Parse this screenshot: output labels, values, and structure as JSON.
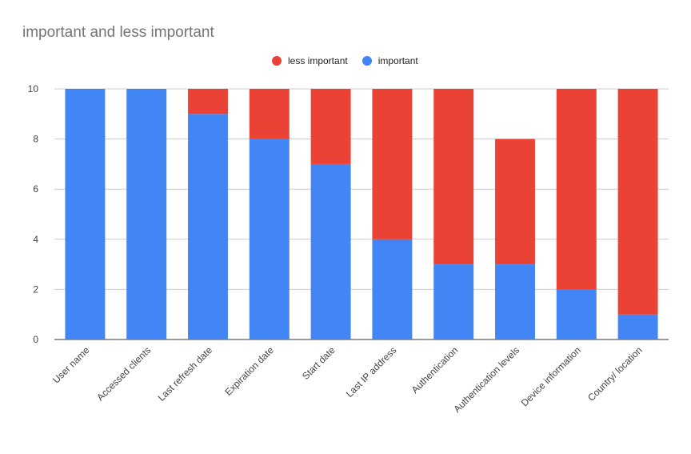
{
  "chart_data": {
    "type": "bar",
    "stacked": true,
    "title": "important and less important",
    "xlabel": "",
    "ylabel": "",
    "ylim": [
      0,
      10
    ],
    "yticks": [
      0,
      2,
      4,
      6,
      8,
      10
    ],
    "grid": true,
    "legend_position": "top",
    "categories": [
      "User name",
      "Accessed clients",
      "Last refresh date",
      "Expiration date",
      "Start date",
      "Last IP address",
      "Authentication",
      "Authentication levels",
      "Device information",
      "Country/ location"
    ],
    "series": [
      {
        "name": "important",
        "color": "#4285F4",
        "values": [
          10,
          10,
          9,
          8,
          7,
          4,
          3,
          3,
          2,
          1
        ]
      },
      {
        "name": "less important",
        "color": "#EA4335",
        "values": [
          0,
          0,
          1,
          2,
          3,
          6,
          7,
          5,
          8,
          9
        ]
      }
    ],
    "legend": [
      {
        "label": "less important",
        "color": "#EA4335"
      },
      {
        "label": "important",
        "color": "#4285F4"
      }
    ]
  }
}
